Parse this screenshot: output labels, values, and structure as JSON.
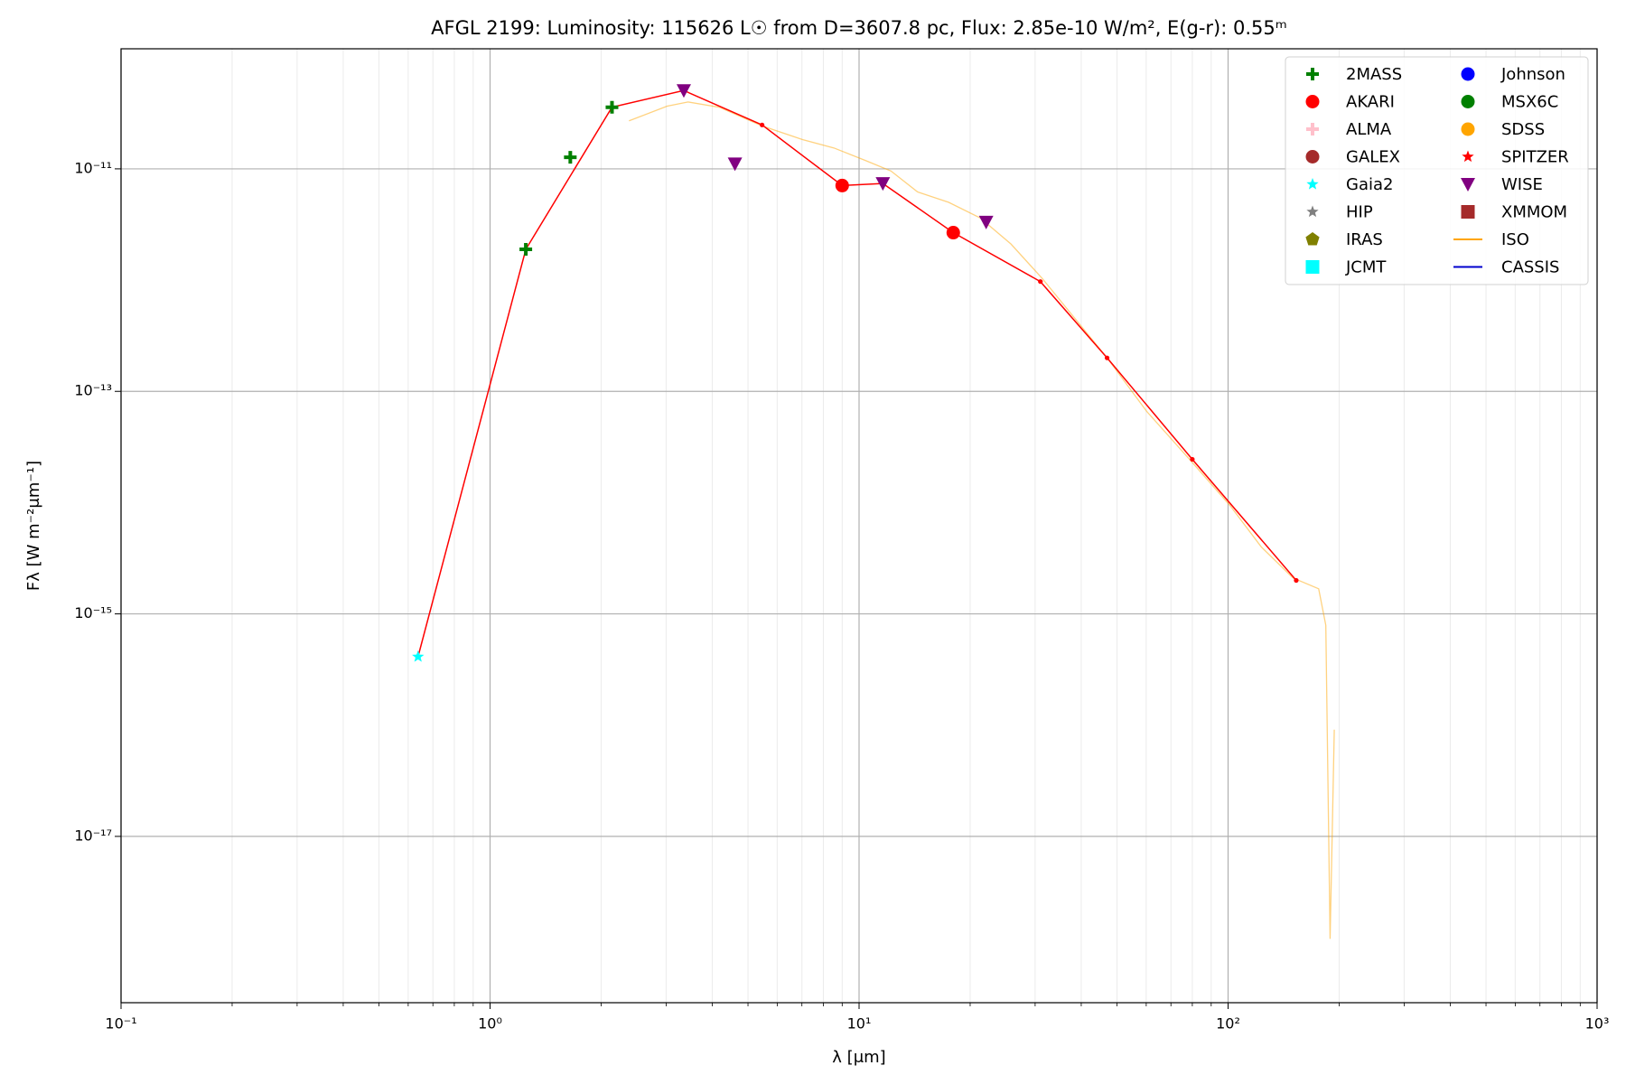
{
  "chart_data": {
    "type": "scatter",
    "title": "AFGL 2199:  Luminosity: 115626 L☉ from D=3607.8 pc, Flux: 2.85e-10 W/m², E(g-r): 0.55ᵐ",
    "xlabel": "λ [μm]",
    "ylabel": "Fλ [W m⁻²μm⁻¹]",
    "xscale": "log",
    "yscale": "log",
    "xlim": [
      0.1,
      1000
    ],
    "ylim": [
      3.2e-19,
      1.2e-10
    ],
    "xticks": [
      {
        "value": 0.1,
        "label": "10⁻¹"
      },
      {
        "value": 1,
        "label": "10⁰"
      },
      {
        "value": 10,
        "label": "10¹"
      },
      {
        "value": 100,
        "label": "10²"
      },
      {
        "value": 1000,
        "label": "10³"
      }
    ],
    "yticks": [
      {
        "value": 1e-17,
        "label": "10⁻¹⁷"
      },
      {
        "value": 1e-15,
        "label": "10⁻¹⁵"
      },
      {
        "value": 1e-13,
        "label": "10⁻¹³"
      },
      {
        "value": 1e-11,
        "label": "10⁻¹¹"
      }
    ],
    "grid": true,
    "legend": "upper right",
    "legend_columns": 2,
    "line": {
      "color": "#ff0000",
      "x": [
        0.638,
        1.25,
        2.14,
        3.35,
        5.46,
        9.0,
        11.6,
        18.0,
        31.0,
        47,
        80,
        153
      ],
      "y": [
        4.12e-16,
        1.89e-12,
        3.58e-11,
        5.06e-11,
        2.48e-11,
        7.08e-12,
        7.39e-12,
        2.67e-12,
        9.7e-13,
        2e-13,
        2.45e-14,
        2e-15
      ]
    },
    "series": [
      {
        "name": "2MASS",
        "color": "#008000",
        "marker": "plus",
        "x": [
          1.25,
          1.65,
          2.14
        ],
        "y": [
          1.89e-12,
          1.27e-11,
          3.58e-11
        ]
      },
      {
        "name": "AKARI",
        "color": "#ff0000",
        "marker": "circle",
        "x": [
          9.0,
          18.0
        ],
        "y": [
          7.08e-12,
          2.67e-12
        ]
      },
      {
        "name": "ALMA",
        "color": "#ffc0cb",
        "marker": "plus",
        "x": [],
        "y": []
      },
      {
        "name": "GALEX",
        "color": "#a52a2a",
        "marker": "circle",
        "x": [],
        "y": []
      },
      {
        "name": "Gaia2",
        "color": "#00ffff",
        "marker": "star",
        "x": [
          0.638
        ],
        "y": [
          4.12e-16
        ]
      },
      {
        "name": "HIP",
        "color": "#808080",
        "marker": "star",
        "x": [],
        "y": []
      },
      {
        "name": "IRAS",
        "color": "#808000",
        "marker": "pentagon",
        "x": [],
        "y": []
      },
      {
        "name": "JCMT",
        "color": "#00ffff",
        "marker": "square",
        "x": [],
        "y": []
      },
      {
        "name": "Johnson",
        "color": "#0000ff",
        "marker": "circle",
        "x": [],
        "y": []
      },
      {
        "name": "MSX6C",
        "color": "#008000",
        "marker": "circle",
        "x": [],
        "y": []
      },
      {
        "name": "SDSS",
        "color": "#ffa500",
        "marker": "circle",
        "x": [],
        "y": []
      },
      {
        "name": "SPITZER",
        "color": "#ff0000",
        "marker": "star",
        "x": [],
        "y": []
      },
      {
        "name": "WISE",
        "color": "#800080",
        "marker": "triangle_down",
        "x": [
          3.35,
          4.61,
          11.6,
          22.1
        ],
        "y": [
          5.06e-11,
          1.11e-11,
          7.39e-12,
          3.32e-12
        ]
      },
      {
        "name": "XMMOM",
        "color": "#a52a2a",
        "marker": "square",
        "x": [],
        "y": []
      },
      {
        "name": "ISO",
        "color": "#ffa500",
        "marker": "line",
        "alpha": 0.5,
        "x": [
          2.38,
          3.02,
          3.44,
          4.18,
          5.46,
          7.04,
          8.55,
          10.4,
          12.2,
          14.4,
          17.5,
          21.3,
          25.8,
          31.4,
          47,
          60.2,
          78.2,
          101,
          123,
          150,
          176,
          184,
          189,
          194
        ],
        "y": [
          2.7e-11,
          3.66e-11,
          3.99e-11,
          3.58e-11,
          2.43e-11,
          1.83e-11,
          1.54e-11,
          1.19e-11,
          9.57e-12,
          6.21e-12,
          5e-12,
          3.62e-12,
          2.11e-12,
          1.03e-12,
          2e-13,
          6.6e-14,
          2.5e-14,
          9.5e-15,
          4e-15,
          2.1e-15,
          1.68e-15,
          7.9e-16,
          1.2e-18,
          9.1e-17
        ]
      },
      {
        "name": "CASSIS",
        "color": "#0000cd",
        "marker": "line",
        "x": [],
        "y": []
      }
    ]
  }
}
